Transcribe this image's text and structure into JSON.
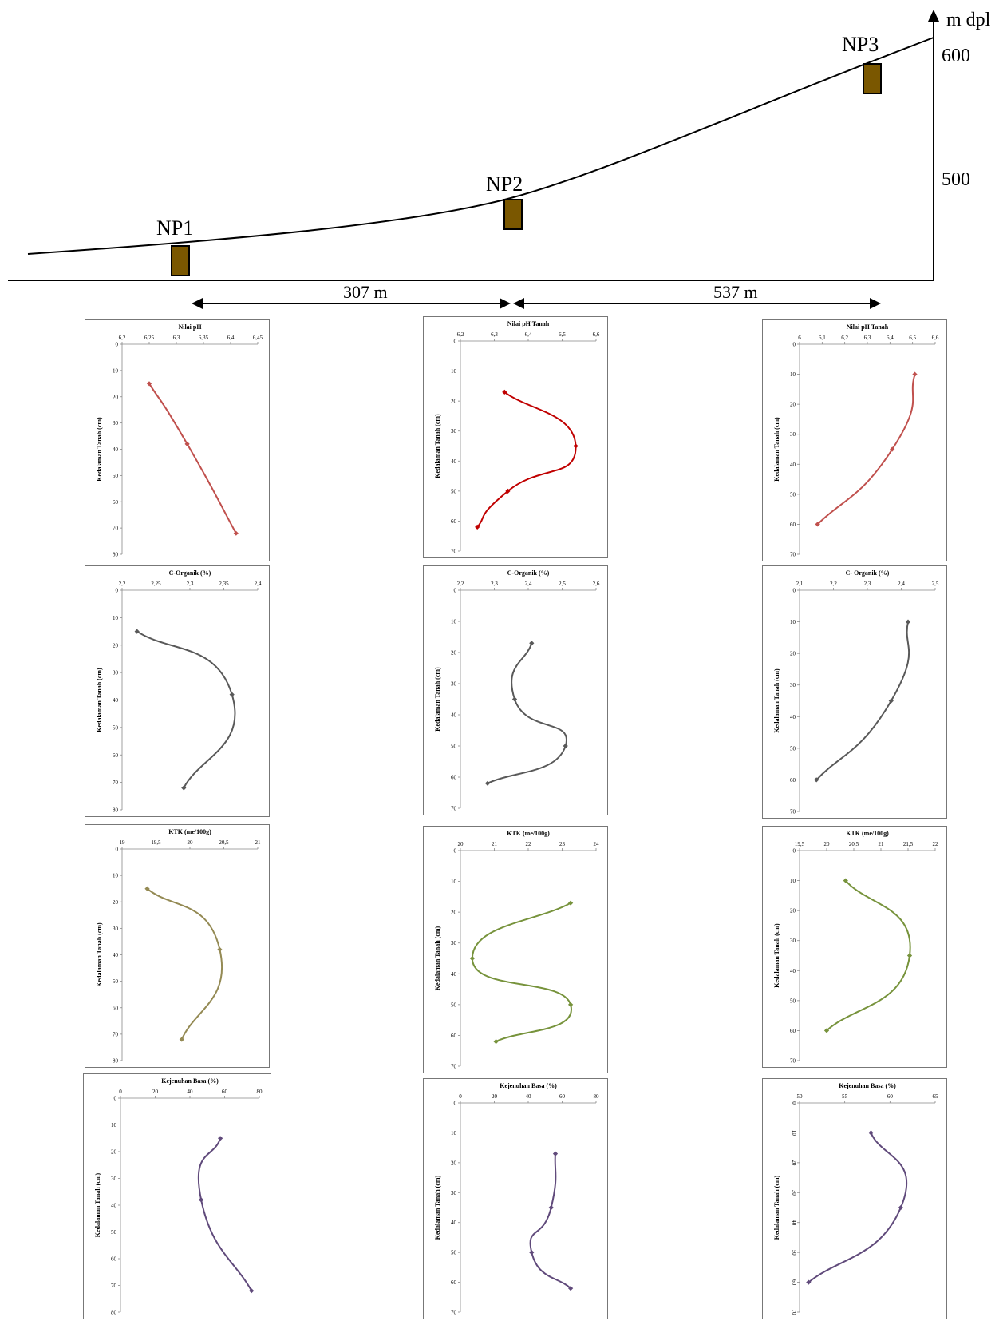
{
  "profile": {
    "axis_unit": "m dpl",
    "elev_ticks": [
      "600",
      "500"
    ],
    "sites": [
      "NP1",
      "NP2",
      "NP3"
    ],
    "distances": [
      "307 m",
      "537 m"
    ],
    "colors": {
      "block": "#7a5700",
      "line": "#000000"
    }
  },
  "ylabel_short": "Kedalaman Tanah (cm)",
  "ylabel_kb": "Kedalaman Tanah (cm)",
  "chart_data": [
    {
      "id": "np1-ph",
      "type": "line",
      "title": "Nilai pH",
      "ylabel": "Kedalaman Tanah (cm)",
      "xticks": [
        "6,2",
        "6,25",
        "6,3",
        "6,35",
        "6,4",
        "6,45"
      ],
      "xlim": [
        6.2,
        6.45
      ],
      "yticks": [
        "0",
        "10",
        "20",
        "30",
        "40",
        "50",
        "60",
        "70",
        "80"
      ],
      "ylim": [
        0,
        80
      ],
      "series": [
        {
          "x": [
            6.25,
            6.32,
            6.41
          ],
          "y": [
            15,
            38,
            72
          ],
          "color": "#c0504d"
        }
      ]
    },
    {
      "id": "np2-ph",
      "type": "line",
      "title": "Nilai pH Tanah",
      "ylabel": "Kedalaman Tanah (cm)",
      "xticks": [
        "6,2",
        "6,3",
        "6,4",
        "6,5",
        "6,6"
      ],
      "xlim": [
        6.2,
        6.6
      ],
      "yticks": [
        "0",
        "10",
        "20",
        "30",
        "40",
        "50",
        "60",
        "70"
      ],
      "ylim": [
        0,
        70
      ],
      "series": [
        {
          "x": [
            6.33,
            6.54,
            6.34,
            6.25
          ],
          "y": [
            17,
            35,
            50,
            62
          ],
          "color": "#c00000"
        }
      ]
    },
    {
      "id": "np3-ph",
      "type": "line",
      "title": "Nilai pH Tanah",
      "ylabel": "Kedalaman Tanah (cm)",
      "xticks": [
        "6",
        "6,1",
        "6,2",
        "6,3",
        "6,4",
        "6,5",
        "6,6"
      ],
      "xlim": [
        6.0,
        6.6
      ],
      "yticks": [
        "0",
        "10",
        "20",
        "30",
        "40",
        "50",
        "60",
        "70"
      ],
      "ylim": [
        0,
        70
      ],
      "series": [
        {
          "x": [
            6.51,
            6.41,
            6.08
          ],
          "y": [
            10,
            35,
            60
          ],
          "color": "#c0504d"
        }
      ]
    },
    {
      "id": "np1-corg",
      "type": "line",
      "title": "C-Organik (%)",
      "ylabel": "Kedalaman Tanah (cm)",
      "xticks": [
        "2,2",
        "2,25",
        "2,3",
        "2,35",
        "2,4"
      ],
      "xlim": [
        2.2,
        2.4
      ],
      "yticks": [
        "0",
        "10",
        "20",
        "30",
        "40",
        "50",
        "60",
        "70",
        "80"
      ],
      "ylim": [
        0,
        80
      ],
      "series": [
        {
          "x": [
            2.222,
            2.362,
            2.291
          ],
          "y": [
            15,
            38,
            72
          ],
          "color": "#595959"
        }
      ]
    },
    {
      "id": "np2-corg",
      "type": "line",
      "title": "C-Organik (%)",
      "ylabel": "Kedalaman Tanah (cm)",
      "xticks": [
        "2,2",
        "2,3",
        "2,4",
        "2,5",
        "2,6"
      ],
      "xlim": [
        2.2,
        2.6
      ],
      "yticks": [
        "0",
        "10",
        "20",
        "30",
        "40",
        "50",
        "60",
        "70"
      ],
      "ylim": [
        0,
        70
      ],
      "series": [
        {
          "x": [
            2.41,
            2.36,
            2.51,
            2.28
          ],
          "y": [
            17,
            35,
            50,
            62
          ],
          "color": "#595959"
        }
      ]
    },
    {
      "id": "np3-corg",
      "type": "line",
      "title": "C- Organik (%)",
      "ylabel": "Kedalaman Tanah (cm)",
      "xticks": [
        "2,1",
        "2,2",
        "2,3",
        "2,4",
        "2,5"
      ],
      "xlim": [
        2.1,
        2.5
      ],
      "yticks": [
        "0",
        "10",
        "20",
        "30",
        "40",
        "50",
        "60",
        "70"
      ],
      "ylim": [
        0,
        70
      ],
      "series": [
        {
          "x": [
            2.42,
            2.37,
            2.15
          ],
          "y": [
            10,
            35,
            60
          ],
          "color": "#595959"
        }
      ]
    },
    {
      "id": "np1-ktk",
      "type": "line",
      "title": "KTK (me/100g)",
      "ylabel": "Kedalaman Tanah (cm)",
      "xticks": [
        "19",
        "19,5",
        "20",
        "20,5",
        "21"
      ],
      "xlim": [
        19,
        21
      ],
      "yticks": [
        "0",
        "10",
        "20",
        "30",
        "40",
        "50",
        "60",
        "70",
        "80"
      ],
      "ylim": [
        0,
        80
      ],
      "series": [
        {
          "x": [
            19.37,
            20.44,
            19.88
          ],
          "y": [
            15,
            38,
            72
          ],
          "color": "#948a54"
        }
      ]
    },
    {
      "id": "np2-ktk",
      "type": "line",
      "title": "KTK (me/100g)",
      "ylabel": "Kedalaman Tanah (cm)",
      "xticks": [
        "20",
        "21",
        "22",
        "23",
        "24"
      ],
      "xlim": [
        20,
        24
      ],
      "yticks": [
        "0",
        "10",
        "20",
        "30",
        "40",
        "50",
        "60",
        "70"
      ],
      "ylim": [
        0,
        70
      ],
      "series": [
        {
          "x": [
            23.25,
            20.35,
            23.25,
            21.05
          ],
          "y": [
            17,
            35,
            50,
            62
          ],
          "color": "#77933c"
        }
      ]
    },
    {
      "id": "np3-ktk",
      "type": "line",
      "title": "KTK (me/100g)",
      "ylabel": "Kedalaman Tanah (cm)",
      "xticks": [
        "19,5",
        "20",
        "20,5",
        "21",
        "21,5",
        "22"
      ],
      "xlim": [
        19.5,
        22
      ],
      "yticks": [
        "0",
        "10",
        "20",
        "30",
        "40",
        "50",
        "60",
        "70"
      ],
      "ylim": [
        0,
        70
      ],
      "series": [
        {
          "x": [
            20.35,
            21.53,
            20.0
          ],
          "y": [
            10,
            35,
            60
          ],
          "color": "#77933c"
        }
      ]
    },
    {
      "id": "np1-kb",
      "type": "line",
      "title": "Kejenuhan Basa (%)",
      "ylabel": "Kedalaman Tanah (cm)",
      "xticks": [
        "0",
        "20",
        "40",
        "60",
        "80"
      ],
      "xlim": [
        0,
        80
      ],
      "yticks": [
        "0",
        "10",
        "20",
        "30",
        "40",
        "50",
        "60",
        "70",
        "80"
      ],
      "ylim": [
        0,
        80
      ],
      "series": [
        {
          "x": [
            57.5,
            46.5,
            75.5
          ],
          "y": [
            15,
            38,
            72
          ],
          "color": "#604a7b"
        }
      ]
    },
    {
      "id": "np2-kb",
      "type": "line",
      "title": "Kejenuhan Basa (%)",
      "ylabel": "Kedalaman Tanah (cm)",
      "xticks": [
        "0",
        "20",
        "40",
        "60",
        "80"
      ],
      "xlim": [
        0,
        80
      ],
      "yticks": [
        "0",
        "10",
        "20",
        "30",
        "40",
        "50",
        "60",
        "70"
      ],
      "ylim": [
        0,
        70
      ],
      "series": [
        {
          "x": [
            56,
            53.5,
            42,
            65
          ],
          "y": [
            17,
            35,
            50,
            62
          ],
          "color": "#604a7b"
        }
      ]
    },
    {
      "id": "np3-kb",
      "type": "line",
      "title": "Kejenuhan Basa (%)",
      "ylabel": "Kedalaman Tanah (cm)",
      "xticks": [
        "50",
        "55",
        "60",
        "65"
      ],
      "xlim": [
        50,
        65
      ],
      "yticks": [
        "0",
        "10",
        "20",
        "30",
        "40",
        "50",
        "60",
        "70"
      ],
      "ylim": [
        0,
        70
      ],
      "rotated_yticks": true,
      "series": [
        {
          "x": [
            57.9,
            61.2,
            51.0
          ],
          "y": [
            10,
            35,
            60
          ],
          "color": "#604a7b"
        }
      ]
    }
  ]
}
